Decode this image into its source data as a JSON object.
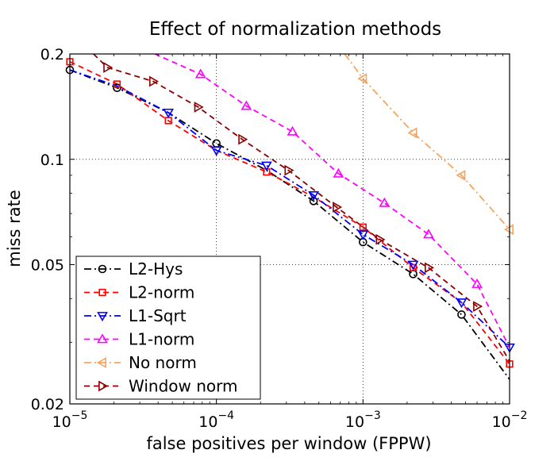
{
  "chart_data": {
    "type": "line",
    "title": "Effect of normalization methods",
    "xlabel": "false positives per window (FPPW)",
    "ylabel": "miss rate",
    "xscale": "log",
    "yscale": "log",
    "xlim": [
      1e-05,
      0.01
    ],
    "ylim": [
      0.02,
      0.2
    ],
    "grid": true,
    "legend_position": "lower-left",
    "x_ticks": [
      {
        "value": 1e-05,
        "base": "10",
        "exp": "−5"
      },
      {
        "value": 0.0001,
        "base": "10",
        "exp": "−4"
      },
      {
        "value": 0.001,
        "base": "10",
        "exp": "−3"
      },
      {
        "value": 0.01,
        "base": "10",
        "exp": "−2"
      }
    ],
    "y_ticks": [
      {
        "value": 0.02,
        "label": "0.02"
      },
      {
        "value": 0.05,
        "label": "0.05"
      },
      {
        "value": 0.1,
        "label": "0.1"
      },
      {
        "value": 0.2,
        "label": "0.2"
      }
    ],
    "series": [
      {
        "name": "L2-Hys",
        "color": "#000000",
        "dash": "dashdot",
        "marker": "circle",
        "points": [
          [
            1e-05,
            0.18
          ],
          [
            2.1e-05,
            0.16
          ],
          [
            4.7e-05,
            0.136
          ],
          [
            0.0001,
            0.111
          ],
          [
            0.00022,
            0.093
          ],
          [
            0.00046,
            0.076
          ],
          [
            0.001,
            0.058
          ],
          [
            0.0022,
            0.047
          ],
          [
            0.0047,
            0.036
          ],
          [
            0.01,
            0.0235
          ]
        ],
        "markers": [
          [
            1e-05,
            0.18
          ],
          [
            2.1e-05,
            0.16
          ],
          [
            0.0001,
            0.111
          ],
          [
            0.00046,
            0.076
          ],
          [
            0.001,
            0.058
          ],
          [
            0.0022,
            0.047
          ],
          [
            0.0047,
            0.036
          ]
        ]
      },
      {
        "name": "L2-norm",
        "color": "#ff0000",
        "dash": "dashed",
        "marker": "square",
        "points": [
          [
            1e-05,
            0.19
          ],
          [
            2.1e-05,
            0.164
          ],
          [
            4.7e-05,
            0.129
          ],
          [
            0.0001,
            0.106
          ],
          [
            0.00022,
            0.092
          ],
          [
            0.00046,
            0.078
          ],
          [
            0.001,
            0.064
          ],
          [
            0.0022,
            0.049
          ],
          [
            0.0047,
            0.039
          ],
          [
            0.01,
            0.026
          ]
        ],
        "markers": [
          [
            1e-05,
            0.19
          ],
          [
            2.1e-05,
            0.164
          ],
          [
            4.7e-05,
            0.129
          ],
          [
            0.00022,
            0.092
          ],
          [
            0.001,
            0.064
          ],
          [
            0.0022,
            0.049
          ],
          [
            0.01,
            0.026
          ]
        ]
      },
      {
        "name": "L1-Sqrt",
        "color": "#0000ff",
        "dash": "dashdot",
        "marker": "triangle-down",
        "points": [
          [
            1e-05,
            0.18
          ],
          [
            2.1e-05,
            0.162
          ],
          [
            4.7e-05,
            0.136
          ],
          [
            0.0001,
            0.106
          ],
          [
            0.00022,
            0.096
          ],
          [
            0.00046,
            0.079
          ],
          [
            0.001,
            0.061
          ],
          [
            0.0022,
            0.05
          ],
          [
            0.0047,
            0.039
          ],
          [
            0.01,
            0.029
          ]
        ],
        "markers": [
          [
            4.7e-05,
            0.136
          ],
          [
            0.0001,
            0.106
          ],
          [
            0.00022,
            0.096
          ],
          [
            0.00046,
            0.079
          ],
          [
            0.001,
            0.061
          ],
          [
            0.0022,
            0.05
          ],
          [
            0.0047,
            0.039
          ],
          [
            0.01,
            0.029
          ]
        ]
      },
      {
        "name": "L1-norm",
        "color": "#ff00ff",
        "dash": "dashed",
        "marker": "triangle-up",
        "points": [
          [
            1e-05,
            0.3
          ],
          [
            3.8e-05,
            0.2
          ],
          [
            7.8e-05,
            0.175
          ],
          [
            0.00016,
            0.142
          ],
          [
            0.00033,
            0.12
          ],
          [
            0.00068,
            0.091
          ],
          [
            0.0014,
            0.075
          ],
          [
            0.0028,
            0.061
          ],
          [
            0.006,
            0.044
          ],
          [
            0.01,
            0.029
          ]
        ],
        "markers": [
          [
            7.8e-05,
            0.175
          ],
          [
            0.00016,
            0.142
          ],
          [
            0.00033,
            0.12
          ],
          [
            0.00068,
            0.091
          ],
          [
            0.0014,
            0.075
          ],
          [
            0.0028,
            0.061
          ],
          [
            0.006,
            0.044
          ]
        ]
      },
      {
        "name": "No norm",
        "color": "#f4a460",
        "dash": "dashdot",
        "marker": "triangle-left",
        "points": [
          [
            0.00075,
            0.2
          ],
          [
            0.001,
            0.17
          ],
          [
            0.0022,
            0.119
          ],
          [
            0.0047,
            0.09
          ],
          [
            0.01,
            0.063
          ]
        ],
        "markers": [
          [
            0.001,
            0.17
          ],
          [
            0.0022,
            0.119
          ],
          [
            0.0047,
            0.09
          ],
          [
            0.01,
            0.063
          ]
        ]
      },
      {
        "name": "Window norm",
        "color": "#8b0000",
        "dash": "dashed",
        "marker": "triangle-right",
        "points": [
          [
            1.45e-05,
            0.2
          ],
          [
            1.8e-05,
            0.183
          ],
          [
            3.7e-05,
            0.167
          ],
          [
            7.5e-05,
            0.141
          ],
          [
            0.00015,
            0.114
          ],
          [
            0.00031,
            0.093
          ],
          [
            0.00066,
            0.073
          ],
          [
            0.0013,
            0.059
          ],
          [
            0.0028,
            0.049
          ],
          [
            0.006,
            0.038
          ],
          [
            0.01,
            0.0265
          ]
        ],
        "markers": [
          [
            1.8e-05,
            0.183
          ],
          [
            3.7e-05,
            0.167
          ],
          [
            7.5e-05,
            0.141
          ],
          [
            0.00015,
            0.114
          ],
          [
            0.00031,
            0.093
          ],
          [
            0.00066,
            0.073
          ],
          [
            0.0013,
            0.059
          ],
          [
            0.0028,
            0.049
          ],
          [
            0.006,
            0.038
          ]
        ]
      }
    ]
  }
}
